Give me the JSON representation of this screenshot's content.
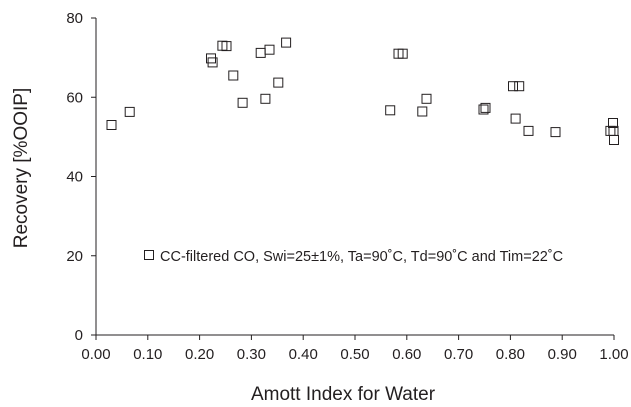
{
  "chart_data": {
    "type": "scatter",
    "xlabel": "Amott Index for Water",
    "ylabel": "Recovery [%OOIP]",
    "xlim": [
      0,
      1
    ],
    "ylim": [
      0,
      80
    ],
    "x_ticks": [
      "0.00",
      "0.10",
      "0.20",
      "0.30",
      "0.40",
      "0.50",
      "0.60",
      "0.70",
      "0.80",
      "0.90",
      "1.00"
    ],
    "y_ticks": [
      "0",
      "20",
      "40",
      "60",
      "80"
    ],
    "grid": false,
    "legend_position": "lower-center",
    "marker": "open-square",
    "marker_color": "#231f20",
    "series": [
      {
        "name": "CC-filtered CO, Swi=25±1%, Ta=90˚C, Td=90˚C and Tim=22˚C",
        "points": [
          {
            "x": 0.03,
            "y": 53.0
          },
          {
            "x": 0.065,
            "y": 56.3
          },
          {
            "x": 0.222,
            "y": 69.8
          },
          {
            "x": 0.225,
            "y": 68.8
          },
          {
            "x": 0.244,
            "y": 73.0
          },
          {
            "x": 0.252,
            "y": 72.9
          },
          {
            "x": 0.265,
            "y": 65.5
          },
          {
            "x": 0.283,
            "y": 58.6
          },
          {
            "x": 0.318,
            "y": 71.2
          },
          {
            "x": 0.327,
            "y": 59.6
          },
          {
            "x": 0.335,
            "y": 72.0
          },
          {
            "x": 0.352,
            "y": 63.7
          },
          {
            "x": 0.367,
            "y": 73.8
          },
          {
            "x": 0.568,
            "y": 56.7
          },
          {
            "x": 0.584,
            "y": 71.0
          },
          {
            "x": 0.592,
            "y": 71.0
          },
          {
            "x": 0.63,
            "y": 56.4
          },
          {
            "x": 0.638,
            "y": 59.6
          },
          {
            "x": 0.748,
            "y": 56.9
          },
          {
            "x": 0.752,
            "y": 57.3
          },
          {
            "x": 0.805,
            "y": 62.8
          },
          {
            "x": 0.817,
            "y": 62.8
          },
          {
            "x": 0.81,
            "y": 54.6
          },
          {
            "x": 0.835,
            "y": 51.5
          },
          {
            "x": 0.887,
            "y": 51.2
          },
          {
            "x": 0.993,
            "y": 51.5
          },
          {
            "x": 0.998,
            "y": 53.5
          },
          {
            "x": 0.999,
            "y": 51.5
          },
          {
            "x": 1.0,
            "y": 49.2
          }
        ]
      }
    ]
  }
}
